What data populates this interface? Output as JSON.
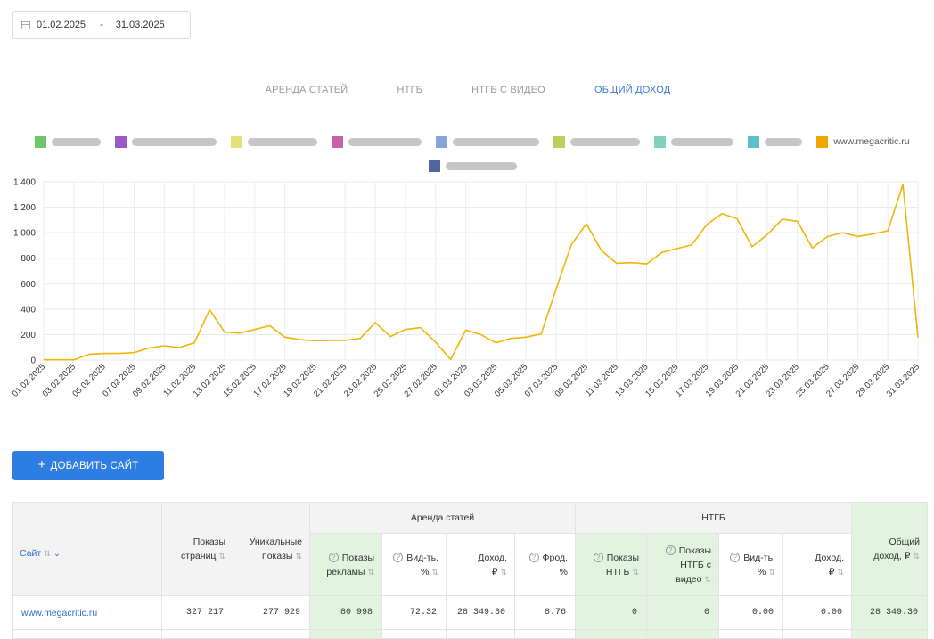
{
  "filters": {
    "date_from": "01.02.2025",
    "date_separator": "-",
    "date_to": "31.03.2025"
  },
  "tabs": [
    {
      "label": "АРЕНДА СТАТЕЙ",
      "active": false
    },
    {
      "label": "НТГБ",
      "active": false
    },
    {
      "label": "НТГБ С ВИДЕО",
      "active": false
    },
    {
      "label": "ОБЩИЙ ДОХОД",
      "active": true
    }
  ],
  "legend": [
    {
      "color": "#6cc66c",
      "label": "",
      "redacted": true
    },
    {
      "color": "#9b59c6",
      "label": "",
      "redacted": true
    },
    {
      "color": "#e3e27a",
      "label": "",
      "redacted": true
    },
    {
      "color": "#c660a8",
      "label": "",
      "redacted": true
    },
    {
      "color": "#85a6d6",
      "label": "",
      "redacted": true
    },
    {
      "color": "#b6d25a",
      "label": "",
      "redacted": true
    },
    {
      "color": "#7dd3bd",
      "label": "",
      "redacted": true
    },
    {
      "color": "#5cbfc9",
      "label": "",
      "redacted": true
    },
    {
      "color": "#f0a800",
      "label": "www.megacritic.ru",
      "redacted": false
    },
    {
      "color": "#4f66a1",
      "label": "",
      "redacted": true
    }
  ],
  "chart_data": {
    "type": "line",
    "series": [
      {
        "name": "www.megacritic.ru",
        "color": "#f0b40a",
        "values": [
          2,
          2,
          2,
          45,
          52,
          52,
          58,
          95,
          112,
          98,
          135,
          395,
          220,
          212,
          240,
          270,
          180,
          160,
          152,
          155,
          155,
          170,
          295,
          185,
          240,
          255,
          140,
          5,
          235,
          200,
          135,
          170,
          180,
          205,
          560,
          905,
          1070,
          860,
          760,
          765,
          755,
          845,
          875,
          905,
          1065,
          1150,
          1110,
          890,
          985,
          1105,
          1090,
          880,
          970,
          1000,
          970,
          990,
          1015,
          1380,
          180
        ]
      }
    ],
    "x_tick_labels": [
      "01.02.2025",
      "03.02.2025",
      "05.02.2025",
      "07.02.2025",
      "09.02.2025",
      "11.02.2025",
      "13.02.2025",
      "15.02.2025",
      "17.02.2025",
      "19.02.2025",
      "21.02.2025",
      "23.02.2025",
      "25.02.2025",
      "27.02.2025",
      "01.03.2025",
      "03.03.2025",
      "05.03.2025",
      "07.03.2025",
      "09.03.2025",
      "11.03.2025",
      "13.03.2025",
      "15.03.2025",
      "17.03.2025",
      "19.03.2025",
      "21.03.2025",
      "23.03.2025",
      "25.03.2025",
      "27.03.2025",
      "29.03.2025",
      "31.03.2025"
    ],
    "y_ticks": [
      0,
      200,
      400,
      600,
      800,
      1000,
      1200,
      1400
    ],
    "y_tick_labels": [
      "0",
      "200",
      "400",
      "600",
      "800",
      "1 000",
      "1 200",
      "1 400"
    ],
    "ylim": [
      0,
      1400
    ],
    "grid": true
  },
  "add_site_button": "ДОБАВИТЬ САЙТ",
  "table": {
    "group_article_rent": "Аренда статей",
    "group_ntgb": "НТГБ",
    "col_site": "Сайт",
    "col_page_views_1": "Показы",
    "col_page_views_2": "страниц",
    "col_unique_1": "Уникальные",
    "col_unique_2": "показы",
    "col_ad_impr_1": "Показы",
    "col_ad_impr_2": "рекламы",
    "col_vis_1": "Вид-ть,",
    "col_vis_2": "%",
    "col_income_1": "Доход,",
    "col_income_2": "₽",
    "col_fraud_1": "Фрод,",
    "col_fraud_2": "%",
    "col_ntgb_impr_1": "Показы",
    "col_ntgb_impr_2": "НТГБ",
    "col_ntgb_video_1": "Показы",
    "col_ntgb_video_2": "НТГБ с",
    "col_ntgb_video_3": "видео",
    "col_ntgb_vis_1": "Вид-ть,",
    "col_ntgb_vis_2": "%",
    "col_ntgb_income_1": "Доход,",
    "col_ntgb_income_2": "₽",
    "col_total_1": "Общий",
    "col_total_2": "доход, ₽",
    "rows": [
      {
        "site": "www.megacritic.ru",
        "page_views": "327 217",
        "unique_views": "277 929",
        "ad_impressions": "80 998",
        "visibility": "72.32",
        "income": "28 349.30",
        "fraud": "8.76",
        "ntgb_impressions": "0",
        "ntgb_video_impressions": "0",
        "ntgb_visibility": "0.00",
        "ntgb_income": "0.00",
        "total_income": "28 349.30"
      }
    ]
  }
}
